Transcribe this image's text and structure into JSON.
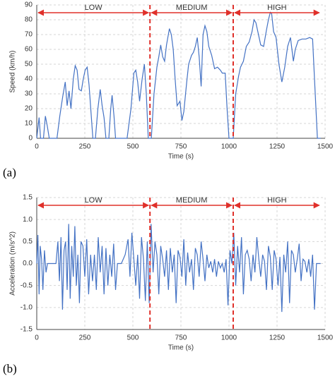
{
  "chart_data": [
    {
      "type": "line",
      "panel": "(a)",
      "xlabel": "Time (s)",
      "ylabel": "Speed (km/h)",
      "color": "#4472c4",
      "grid": true,
      "xlim": [
        0,
        1500
      ],
      "xticks": [
        0,
        250,
        500,
        750,
        1000,
        1250,
        1500
      ],
      "ylim": [
        0,
        90
      ],
      "yticks": [
        0,
        10,
        20,
        30,
        40,
        50,
        60,
        70,
        80,
        90
      ],
      "phases": [
        {
          "label": "LOW",
          "start": 0,
          "end": 589
        },
        {
          "label": "MEDIUM",
          "start": 589,
          "end": 1022
        },
        {
          "label": "HIGH",
          "start": 1022,
          "end": 1477
        }
      ],
      "x": [
        0,
        12,
        20,
        35,
        45,
        55,
        65,
        105,
        120,
        135,
        148,
        158,
        168,
        178,
        190,
        200,
        210,
        220,
        232,
        242,
        252,
        262,
        272,
        282,
        292,
        305,
        318,
        330,
        340,
        350,
        360,
        375,
        385,
        392,
        402,
        410,
        440,
        470,
        490,
        505,
        515,
        525,
        535,
        548,
        560,
        570,
        580,
        596,
        610,
        625,
        635,
        645,
        655,
        665,
        675,
        690,
        700,
        710,
        720,
        730,
        745,
        755,
        765,
        780,
        790,
        805,
        815,
        825,
        835,
        845,
        855,
        865,
        875,
        885,
        895,
        910,
        925,
        940,
        955,
        965,
        980,
        990,
        1000,
        1022,
        1035,
        1050,
        1060,
        1075,
        1090,
        1105,
        1120,
        1130,
        1140,
        1150,
        1165,
        1180,
        1195,
        1205,
        1215,
        1222,
        1232,
        1245,
        1260,
        1275,
        1290,
        1305,
        1320,
        1335,
        1345,
        1360,
        1380,
        1400,
        1420,
        1435,
        1445,
        1460,
        1477
      ],
      "values": [
        0,
        14,
        0,
        0,
        15,
        8,
        0,
        0,
        15,
        28,
        38,
        22,
        32,
        20,
        40,
        49,
        46,
        33,
        32,
        40,
        46,
        48,
        36,
        18,
        0,
        0,
        20,
        33,
        22,
        14,
        0,
        0,
        20,
        29,
        15,
        0,
        0,
        0,
        20,
        44,
        46,
        38,
        25,
        40,
        50,
        30,
        0,
        0,
        30,
        48,
        55,
        63,
        55,
        52,
        63,
        74,
        70,
        60,
        40,
        22,
        25,
        12,
        18,
        38,
        50,
        56,
        58,
        62,
        68,
        55,
        35,
        70,
        76,
        72,
        62,
        56,
        47,
        48,
        46,
        44,
        44,
        20,
        0,
        0,
        30,
        42,
        48,
        52,
        62,
        65,
        72,
        80,
        78,
        72,
        63,
        62,
        73,
        80,
        85,
        84,
        72,
        68,
        50,
        38,
        48,
        62,
        68,
        52,
        60,
        66,
        67,
        67,
        68,
        67,
        40,
        0,
        0
      ]
    },
    {
      "type": "line",
      "panel": "(b)",
      "xlabel": "Time (s)",
      "ylabel": "Acceleration (m/s^2)",
      "color": "#4472c4",
      "grid": true,
      "xlim": [
        0,
        1500
      ],
      "xticks": [
        0,
        250,
        500,
        750,
        1000,
        1250,
        1500
      ],
      "ylim": [
        -1.5,
        1.5
      ],
      "yticks": [
        -1.5,
        {
          "value": -1,
          "label": "-1.0"
        },
        -0.5,
        {
          "value": 0,
          "label": "0.0"
        },
        0.5,
        {
          "value": 1,
          "label": "1.0"
        },
        1.5
      ],
      "phases": [
        {
          "label": "LOW",
          "start": 0,
          "end": 589
        },
        {
          "label": "MEDIUM",
          "start": 589,
          "end": 1022
        },
        {
          "label": "HIGH",
          "start": 1022,
          "end": 1477
        }
      ],
      "x": [
        0,
        6,
        12,
        18,
        25,
        32,
        40,
        48,
        56,
        62,
        70,
        100,
        110,
        118,
        126,
        134,
        142,
        150,
        158,
        166,
        174,
        182,
        190,
        198,
        206,
        214,
        222,
        230,
        240,
        250,
        260,
        270,
        280,
        290,
        300,
        310,
        320,
        330,
        340,
        350,
        360,
        370,
        380,
        390,
        400,
        410,
        420,
        440,
        460,
        475,
        485,
        495,
        505,
        515,
        525,
        535,
        545,
        555,
        565,
        575,
        585,
        595,
        605,
        615,
        625,
        635,
        645,
        655,
        665,
        675,
        685,
        695,
        705,
        715,
        725,
        735,
        745,
        755,
        765,
        775,
        785,
        795,
        805,
        815,
        825,
        835,
        845,
        855,
        865,
        875,
        885,
        895,
        905,
        915,
        925,
        935,
        945,
        955,
        965,
        975,
        985,
        995,
        1005,
        1015,
        1025,
        1035,
        1045,
        1055,
        1065,
        1075,
        1085,
        1095,
        1105,
        1115,
        1125,
        1135,
        1145,
        1155,
        1165,
        1175,
        1185,
        1195,
        1205,
        1215,
        1225,
        1235,
        1245,
        1255,
        1265,
        1275,
        1285,
        1295,
        1305,
        1315,
        1325,
        1335,
        1345,
        1355,
        1365,
        1375,
        1385,
        1395,
        1405,
        1415,
        1425,
        1435,
        1445,
        1455,
        1477
      ],
      "values": [
        0,
        0.65,
        -0.7,
        0.4,
        0.1,
        -0.6,
        0.3,
        -0.2,
        0,
        0,
        0,
        0,
        0.5,
        -0.4,
        0.6,
        -1.05,
        0.3,
        0.5,
        -0.6,
        0.9,
        -0.8,
        0.4,
        -0.3,
        0.85,
        -0.5,
        0.2,
        -0.9,
        0.5,
        0.4,
        -0.3,
        0.55,
        -0.7,
        0.2,
        -0.4,
        0.2,
        -0.6,
        0.6,
        -0.2,
        0.4,
        -0.7,
        0.35,
        -0.5,
        0.2,
        -0.3,
        0.45,
        -0.6,
        0,
        0,
        0.2,
        0.55,
        -0.3,
        0.7,
        0.1,
        -0.5,
        0.2,
        -0.8,
        0.6,
        0.1,
        -0.85,
        0.5,
        -0.9,
        0.9,
        -0.2,
        0.5,
        0.2,
        -0.7,
        0.4,
        0.1,
        -0.3,
        0.3,
        -0.6,
        0.35,
        -0.2,
        0.2,
        -0.9,
        0.3,
        0.15,
        -0.3,
        0.55,
        -0.5,
        0.25,
        -0.2,
        0.1,
        -0.6,
        0.35,
        0.2,
        -0.3,
        0.5,
        0.1,
        -0.4,
        0.2,
        -0.1,
        0.05,
        -0.2,
        0.1,
        -0.3,
        0.05,
        -0.1,
        0,
        -0.2,
        0.1,
        -0.95,
        0.3,
        0,
        0.7,
        -0.5,
        0.4,
        -0.2,
        0.6,
        -0.7,
        0.2,
        0.3,
        0.1,
        -0.4,
        0.2,
        -0.2,
        0.6,
        0.1,
        -0.3,
        0.2,
        0.05,
        -0.6,
        0.4,
        0.15,
        -0.6,
        0.3,
        0.1,
        -0.5,
        0.15,
        -1.1,
        0.2,
        -0.2,
        0.5,
        -0.9,
        0.3,
        0.2,
        -0.2,
        0.1,
        0.45,
        -0.4,
        0.1,
        0.05,
        -0.2,
        0.1,
        -0.3,
        0.2,
        -1.05,
        0,
        0
      ]
    }
  ]
}
